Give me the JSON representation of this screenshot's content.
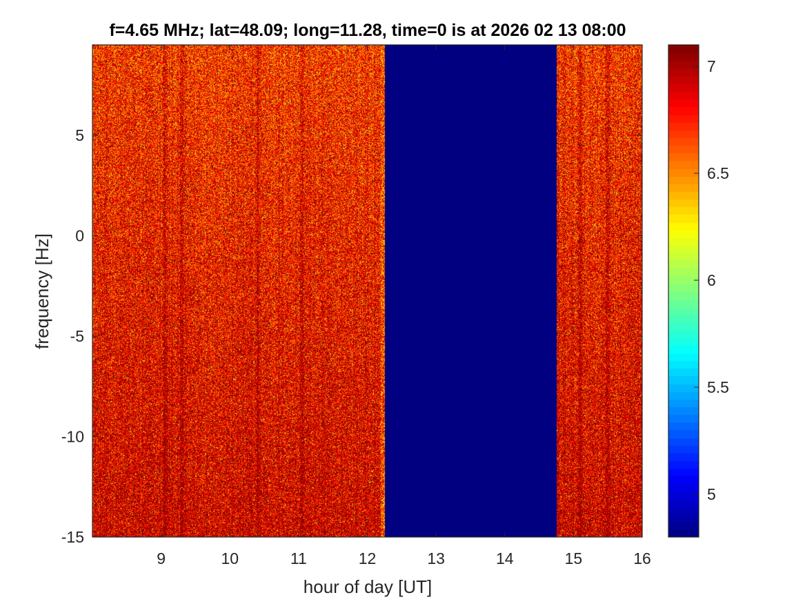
{
  "chart_data": {
    "type": "heatmap",
    "title": "f=4.65 MHz;  lat=48.09; long=11.28, time=0 is at 2026 02 13 08:00",
    "xlabel": "hour of day [UT]",
    "ylabel": "frequency [Hz]",
    "xlim": [
      8,
      16
    ],
    "ylim": [
      -15,
      9.5
    ],
    "x_ticks": [
      9,
      10,
      11,
      12,
      13,
      14,
      15,
      16
    ],
    "y_ticks": [
      -15,
      -10,
      -5,
      0,
      5
    ],
    "colorbar": {
      "colormap": "jet",
      "clim": [
        4.8,
        7.1
      ],
      "ticks": [
        5,
        5.5,
        6,
        6.5,
        7
      ]
    },
    "regions": [
      {
        "x_range": [
          8,
          12.25
        ],
        "description_value": "noisy spectrum, typical 6.6-7.1"
      },
      {
        "x_range": [
          12.25,
          14.75
        ],
        "value": 4.8
      },
      {
        "x_range": [
          14.75,
          16
        ],
        "description_value": "noisy spectrum, typical 6.6-7.1"
      }
    ],
    "dark_streaks_x": [
      9.05,
      9.3,
      10.4,
      11.05,
      15.1,
      15.5
    ]
  }
}
